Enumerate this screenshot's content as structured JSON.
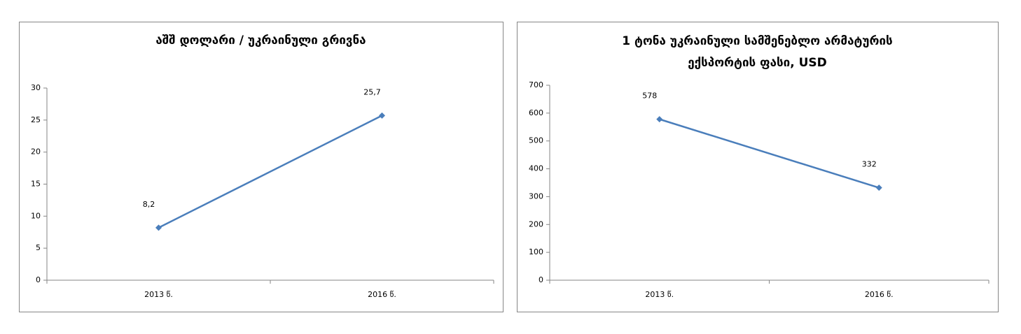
{
  "chart_data": [
    {
      "type": "line",
      "title": [
        "აშშ დოლარი / უკრაინული გრივნა"
      ],
      "categories": [
        "2013 წ.",
        "2016 წ."
      ],
      "values": [
        8.2,
        25.7
      ],
      "value_labels": [
        "8,2",
        "25,7"
      ],
      "color": "#4a7ebb",
      "ylim": [
        0,
        30
      ],
      "yticks": [
        0,
        5,
        10,
        15,
        20,
        25,
        30
      ]
    },
    {
      "type": "line",
      "title": [
        "1 ტონა უკრაინული სამშენებლო არმატურის",
        "ექსპორტის ფასი, USD"
      ],
      "categories": [
        "2013 წ.",
        "2016 წ."
      ],
      "values": [
        578,
        332
      ],
      "color": "#4a7ebb",
      "ylim": [
        0,
        700
      ],
      "yticks": [
        0,
        100,
        200,
        300,
        400,
        500,
        600,
        700
      ]
    }
  ]
}
